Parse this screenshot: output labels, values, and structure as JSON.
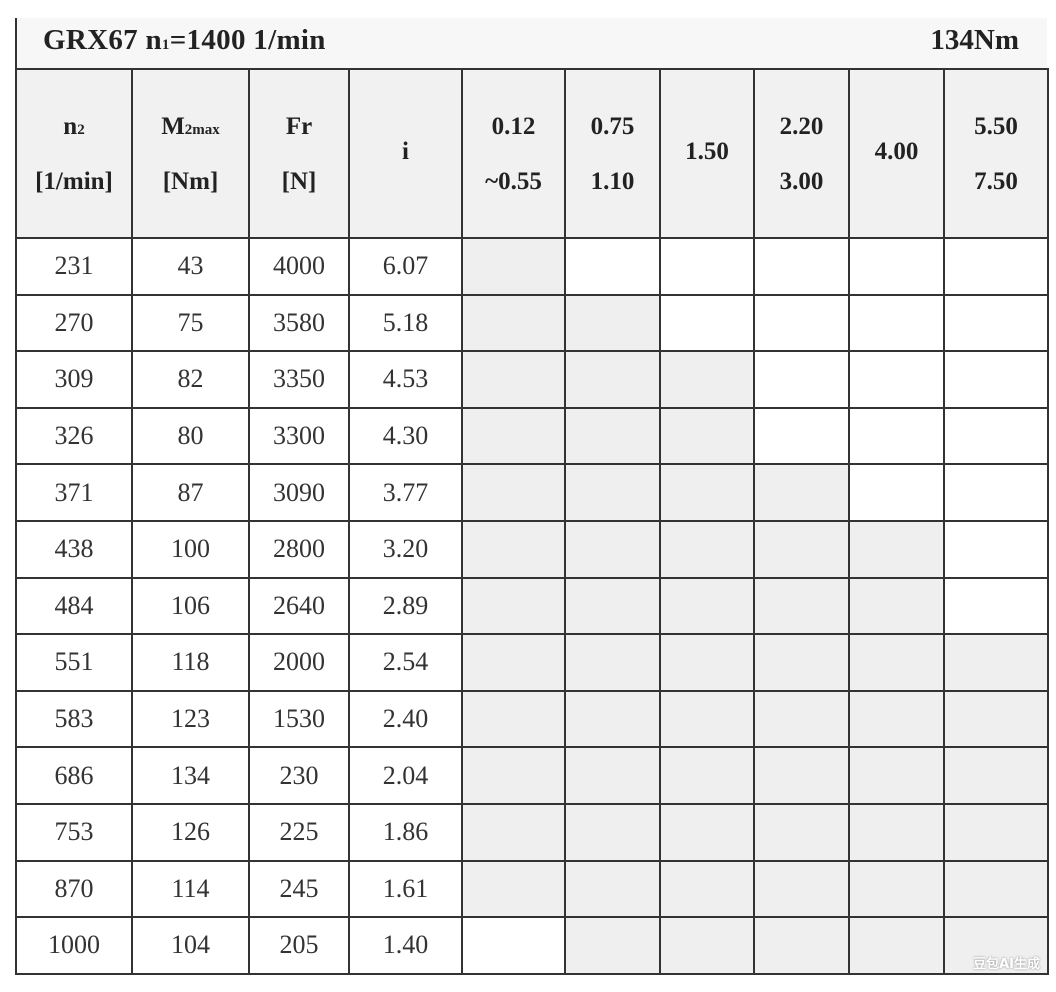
{
  "title": {
    "left_main": "GRX67 n",
    "left_sub": "1",
    "left_rest": "=1400 1/min",
    "right": "134Nm"
  },
  "headers": [
    {
      "line1": "n",
      "line1_sub": "2",
      "line2": "[1/min]"
    },
    {
      "line1": "M",
      "line1_sub": "2max",
      "line2": "[Nm]"
    },
    {
      "line1": "Fr",
      "line1_sub": "",
      "line2": "[N]"
    },
    {
      "line1": "i",
      "line1_sub": "",
      "line2": ""
    },
    {
      "line1": "0.12",
      "line1_sub": "",
      "line2": "~0.55"
    },
    {
      "line1": "0.75",
      "line1_sub": "",
      "line2": "1.10"
    },
    {
      "line1": "1.50",
      "line1_sub": "",
      "line2": ""
    },
    {
      "line1": "2.20",
      "line1_sub": "",
      "line2": "3.00"
    },
    {
      "line1": "4.00",
      "line1_sub": "",
      "line2": ""
    },
    {
      "line1": "5.50",
      "line1_sub": "",
      "line2": "7.50"
    }
  ],
  "rows": [
    {
      "n2": "231",
      "m2max": "43",
      "fr": "4000",
      "i": "6.07",
      "available": [
        1,
        0,
        0,
        0,
        0,
        0
      ]
    },
    {
      "n2": "270",
      "m2max": "75",
      "fr": "3580",
      "i": "5.18",
      "available": [
        1,
        1,
        0,
        0,
        0,
        0
      ]
    },
    {
      "n2": "309",
      "m2max": "82",
      "fr": "3350",
      "i": "4.53",
      "available": [
        1,
        1,
        1,
        0,
        0,
        0
      ]
    },
    {
      "n2": "326",
      "m2max": "80",
      "fr": "3300",
      "i": "4.30",
      "available": [
        1,
        1,
        1,
        0,
        0,
        0
      ]
    },
    {
      "n2": "371",
      "m2max": "87",
      "fr": "3090",
      "i": "3.77",
      "available": [
        1,
        1,
        1,
        1,
        0,
        0
      ]
    },
    {
      "n2": "438",
      "m2max": "100",
      "fr": "2800",
      "i": "3.20",
      "available": [
        1,
        1,
        1,
        1,
        1,
        0
      ]
    },
    {
      "n2": "484",
      "m2max": "106",
      "fr": "2640",
      "i": "2.89",
      "available": [
        1,
        1,
        1,
        1,
        1,
        0
      ]
    },
    {
      "n2": "551",
      "m2max": "118",
      "fr": "2000",
      "i": "2.54",
      "available": [
        1,
        1,
        1,
        1,
        1,
        1
      ]
    },
    {
      "n2": "583",
      "m2max": "123",
      "fr": "1530",
      "i": "2.40",
      "available": [
        1,
        1,
        1,
        1,
        1,
        1
      ]
    },
    {
      "n2": "686",
      "m2max": "134",
      "fr": "230",
      "i": "2.04",
      "available": [
        1,
        1,
        1,
        1,
        1,
        1
      ]
    },
    {
      "n2": "753",
      "m2max": "126",
      "fr": "225",
      "i": "1.86",
      "available": [
        1,
        1,
        1,
        1,
        1,
        1
      ]
    },
    {
      "n2": "870",
      "m2max": "114",
      "fr": "245",
      "i": "1.61",
      "available": [
        1,
        1,
        1,
        1,
        1,
        1
      ]
    },
    {
      "n2": "1000",
      "m2max": "104",
      "fr": "205",
      "i": "1.40",
      "available": [
        0,
        1,
        1,
        1,
        1,
        1
      ]
    }
  ],
  "colors": {
    "shaded_cell": "#efefef",
    "header_bg": "#f1f1f1",
    "border": "#333333"
  },
  "watermark": "豆包AI生成"
}
